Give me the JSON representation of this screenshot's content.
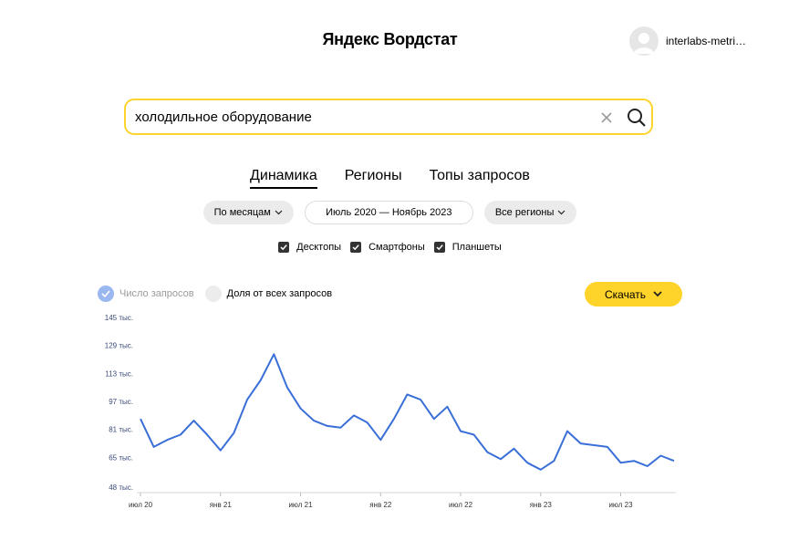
{
  "header": {
    "logo": "Яндекс Вордстат",
    "user_name": "interlabs-metri…"
  },
  "search": {
    "value": "холодильное оборудование",
    "placeholder": ""
  },
  "tabs": [
    {
      "label": "Динамика",
      "active": true
    },
    {
      "label": "Регионы",
      "active": false
    },
    {
      "label": "Топы запросов",
      "active": false
    }
  ],
  "filters": {
    "grouping": "По месяцам",
    "period": "Июль 2020 — Ноябрь 2023",
    "region": "Все регионы"
  },
  "devices": [
    {
      "label": "Десктопы",
      "checked": true
    },
    {
      "label": "Смартфоны",
      "checked": true
    },
    {
      "label": "Планшеты",
      "checked": true
    }
  ],
  "legend": {
    "count": "Число запросов",
    "share": "Доля от всех запросов"
  },
  "download_label": "Скачать",
  "colors": {
    "accent": "#fed42b",
    "line": "#3a6fd8",
    "legend_on": "#9bb7f0"
  },
  "chart_data": {
    "type": "line",
    "yticks": [
      "145 тыс.",
      "129 тыс.",
      "113 тыс.",
      "97 тыс.",
      "81 тыс.",
      "65 тыс.",
      "48 тыс."
    ],
    "yvalues": [
      145,
      129,
      113,
      97,
      81,
      65,
      48
    ],
    "xticks": [
      {
        "label": "июл 20",
        "index": 0
      },
      {
        "label": "янв 21",
        "index": 6
      },
      {
        "label": "июл 21",
        "index": 12
      },
      {
        "label": "янв 22",
        "index": 18
      },
      {
        "label": "июл 22",
        "index": 24
      },
      {
        "label": "янв 23",
        "index": 30
      },
      {
        "label": "июл 23",
        "index": 36
      }
    ],
    "ylim": [
      48,
      145
    ],
    "series": [
      {
        "values": [
          87,
          71,
          75,
          78,
          86,
          78,
          69,
          79,
          98,
          109,
          124,
          105,
          93,
          86,
          83,
          82,
          89,
          85,
          75,
          87,
          101,
          98,
          87,
          94,
          80,
          78,
          68,
          64,
          70,
          62,
          58,
          63,
          80,
          73,
          72,
          71,
          62,
          63,
          60,
          66,
          63
        ]
      }
    ]
  }
}
